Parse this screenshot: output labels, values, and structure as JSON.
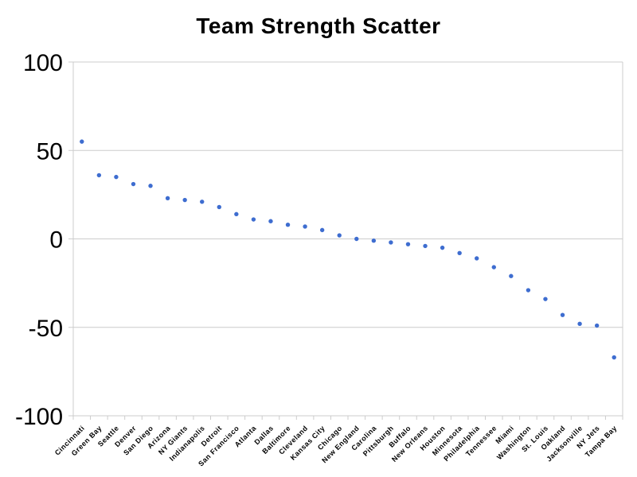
{
  "chart_data": {
    "type": "scatter",
    "title": "Team Strength Scatter",
    "xlabel": "",
    "ylabel": "",
    "categories": [
      "Cincinnati",
      "Green Bay",
      "Seattle",
      "Denver",
      "San Diego",
      "Arizona",
      "NY Giants",
      "Indianapolis",
      "Detroit",
      "San Francisco",
      "Atlanta",
      "Dallas",
      "Baltimore",
      "Cleveland",
      "Kansas City",
      "Chicago",
      "New England",
      "Carolina",
      "Pittsburgh",
      "Buffalo",
      "New Orleans",
      "Houston",
      "Minnesota",
      "Philadelphia",
      "Tennessee",
      "Miami",
      "Washington",
      "St. Louis",
      "Oakland",
      "Jacksonville",
      "NY Jets",
      "Tampa Bay"
    ],
    "values": [
      55,
      36,
      35,
      31,
      30,
      23,
      22,
      21,
      18,
      14,
      11,
      10,
      8,
      7,
      5,
      2,
      0,
      -1,
      -2,
      -3,
      -4,
      -5,
      -8,
      -11,
      -16,
      -21,
      -29,
      -34,
      -43,
      -48,
      -49,
      -67
    ],
    "ylim": [
      -100,
      100
    ],
    "yticks": [
      100,
      50,
      0,
      -50,
      -100
    ],
    "grid": true,
    "legend": "none",
    "colors": {
      "point": "#3e6dd0",
      "gridline": "#cccccc",
      "axis_line": "#cccccc",
      "title_text": "#000000",
      "tick_text": "#000000",
      "background": "#ffffff"
    }
  }
}
